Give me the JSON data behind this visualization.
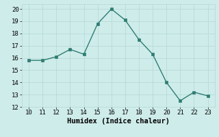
{
  "x": [
    10,
    11,
    12,
    13,
    14,
    15,
    16,
    17,
    18,
    19,
    20,
    21,
    22,
    23
  ],
  "y": [
    15.8,
    15.8,
    16.1,
    16.7,
    16.3,
    18.8,
    20.0,
    19.1,
    17.5,
    16.3,
    14.0,
    12.5,
    13.2,
    12.9
  ],
  "line_color": "#2e7d72",
  "marker_color": "#2e7d72",
  "bg_color": "#ceecea",
  "grid_color_major": "#b8dbd8",
  "grid_color_minor": "#daeeed",
  "xlabel": "Humidex (Indice chaleur)",
  "xlabel_fontsize": 7.5,
  "tick_fontsize": 6.5,
  "xlim": [
    9.5,
    23.5
  ],
  "ylim": [
    12,
    20.4
  ],
  "yticks": [
    12,
    13,
    14,
    15,
    16,
    17,
    18,
    19,
    20
  ],
  "xticks": [
    10,
    11,
    12,
    13,
    14,
    15,
    16,
    17,
    18,
    19,
    20,
    21,
    22,
    23
  ]
}
